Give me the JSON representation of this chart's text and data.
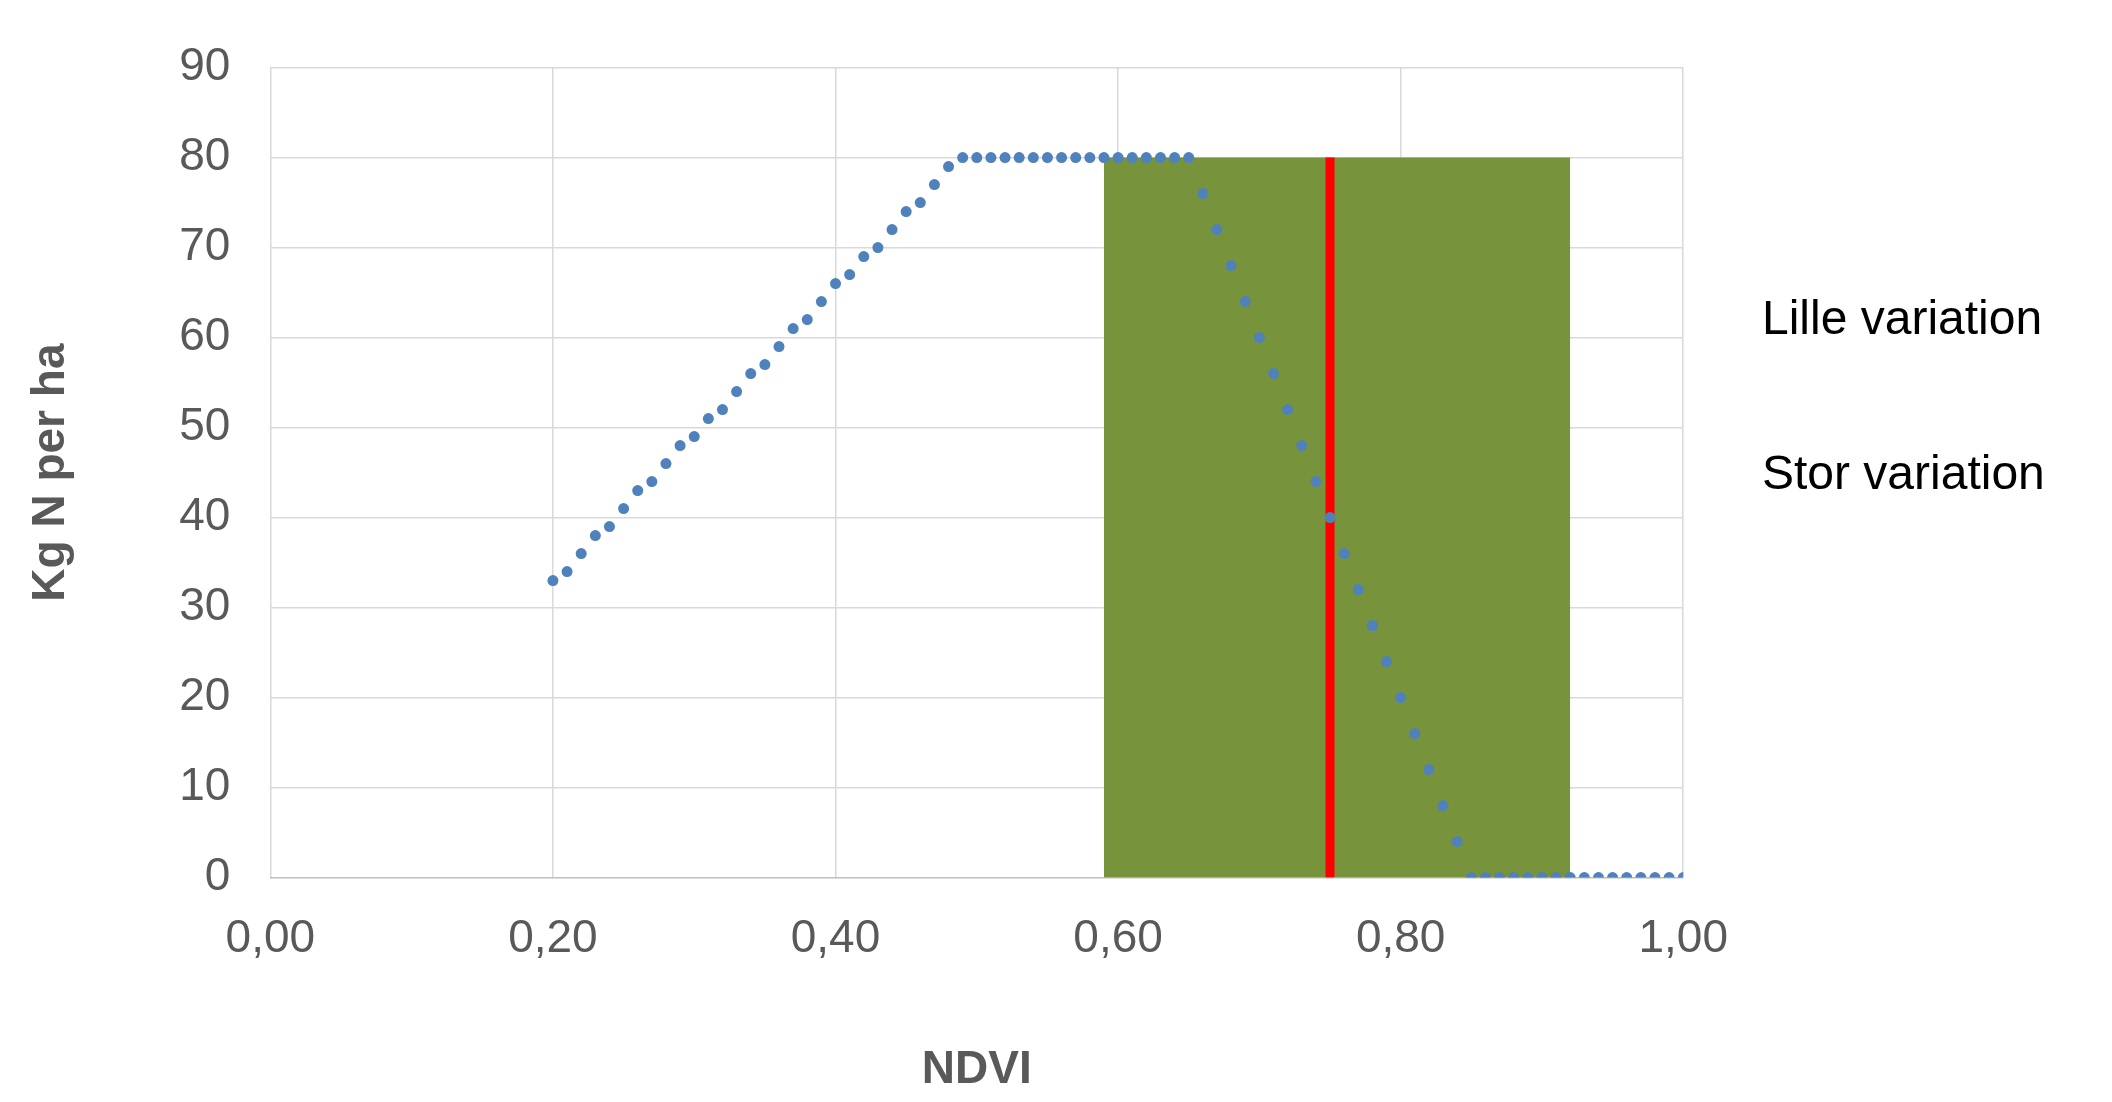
{
  "chart_data": {
    "type": "scatter",
    "xlabel": "NDVI",
    "ylabel": "Kg N per ha",
    "xlim": [
      0,
      1
    ],
    "xticks": [
      {
        "value": 0,
        "label": "0,00"
      },
      {
        "value": 0.2,
        "label": "0,20"
      },
      {
        "value": 0.4,
        "label": "0,40"
      },
      {
        "value": 0.6,
        "label": "0,60"
      },
      {
        "value": 0.8,
        "label": "0,80"
      },
      {
        "value": 1,
        "label": "1,00"
      }
    ],
    "ylim": [
      0,
      90
    ],
    "yticks": [
      0,
      10,
      20,
      30,
      40,
      50,
      60,
      70,
      80,
      90
    ],
    "grid": true,
    "legend": false,
    "annotations": [
      "Lille variation",
      "Stor variation"
    ],
    "series": [
      {
        "type": "area",
        "color": "#77933c",
        "x": [
          0.59,
          0.92
        ],
        "values": [
          80,
          80
        ]
      },
      {
        "type": "line",
        "color": "#ff0000",
        "x": [
          0.75,
          0.75
        ],
        "values": [
          0,
          80
        ]
      },
      {
        "color": "#4f81bd",
        "marker": "circle",
        "x": [
          0.2,
          0.21,
          0.22,
          0.23,
          0.24,
          0.25,
          0.26,
          0.27,
          0.28,
          0.29,
          0.3,
          0.31,
          0.32,
          0.33,
          0.34,
          0.35,
          0.36,
          0.37,
          0.38,
          0.39,
          0.4,
          0.41,
          0.42,
          0.43,
          0.44,
          0.45,
          0.46,
          0.47,
          0.48,
          0.49,
          0.5,
          0.51,
          0.52,
          0.53,
          0.54,
          0.55,
          0.56,
          0.57,
          0.58,
          0.59,
          0.6,
          0.61,
          0.62,
          0.63,
          0.64,
          0.65,
          0.66,
          0.67,
          0.68,
          0.69,
          0.7,
          0.71,
          0.72,
          0.73,
          0.74,
          0.75,
          0.76,
          0.77,
          0.78,
          0.79,
          0.8,
          0.81,
          0.82,
          0.83,
          0.84,
          0.85,
          0.86,
          0.87,
          0.88,
          0.89,
          0.9,
          0.91,
          0.92,
          0.93,
          0.94,
          0.95,
          0.96,
          0.97,
          0.98,
          0.99,
          1
        ],
        "values": [
          33,
          34,
          36,
          38,
          39,
          41,
          43,
          44,
          46,
          48,
          49,
          51,
          52,
          54,
          56,
          57,
          59,
          61,
          62,
          64,
          66,
          67,
          69,
          70,
          72,
          74,
          75,
          77,
          79,
          80,
          80,
          80,
          80,
          80,
          80,
          80,
          80,
          80,
          80,
          80,
          80,
          80,
          80,
          80,
          80,
          80,
          76,
          72,
          68,
          64,
          60,
          56,
          52,
          48,
          44,
          40,
          36,
          32,
          28,
          24,
          20,
          16,
          12,
          8,
          4,
          0,
          0,
          0,
          0,
          0,
          0,
          0,
          0,
          0,
          0,
          0,
          0,
          0,
          0,
          0,
          0
        ]
      }
    ]
  }
}
